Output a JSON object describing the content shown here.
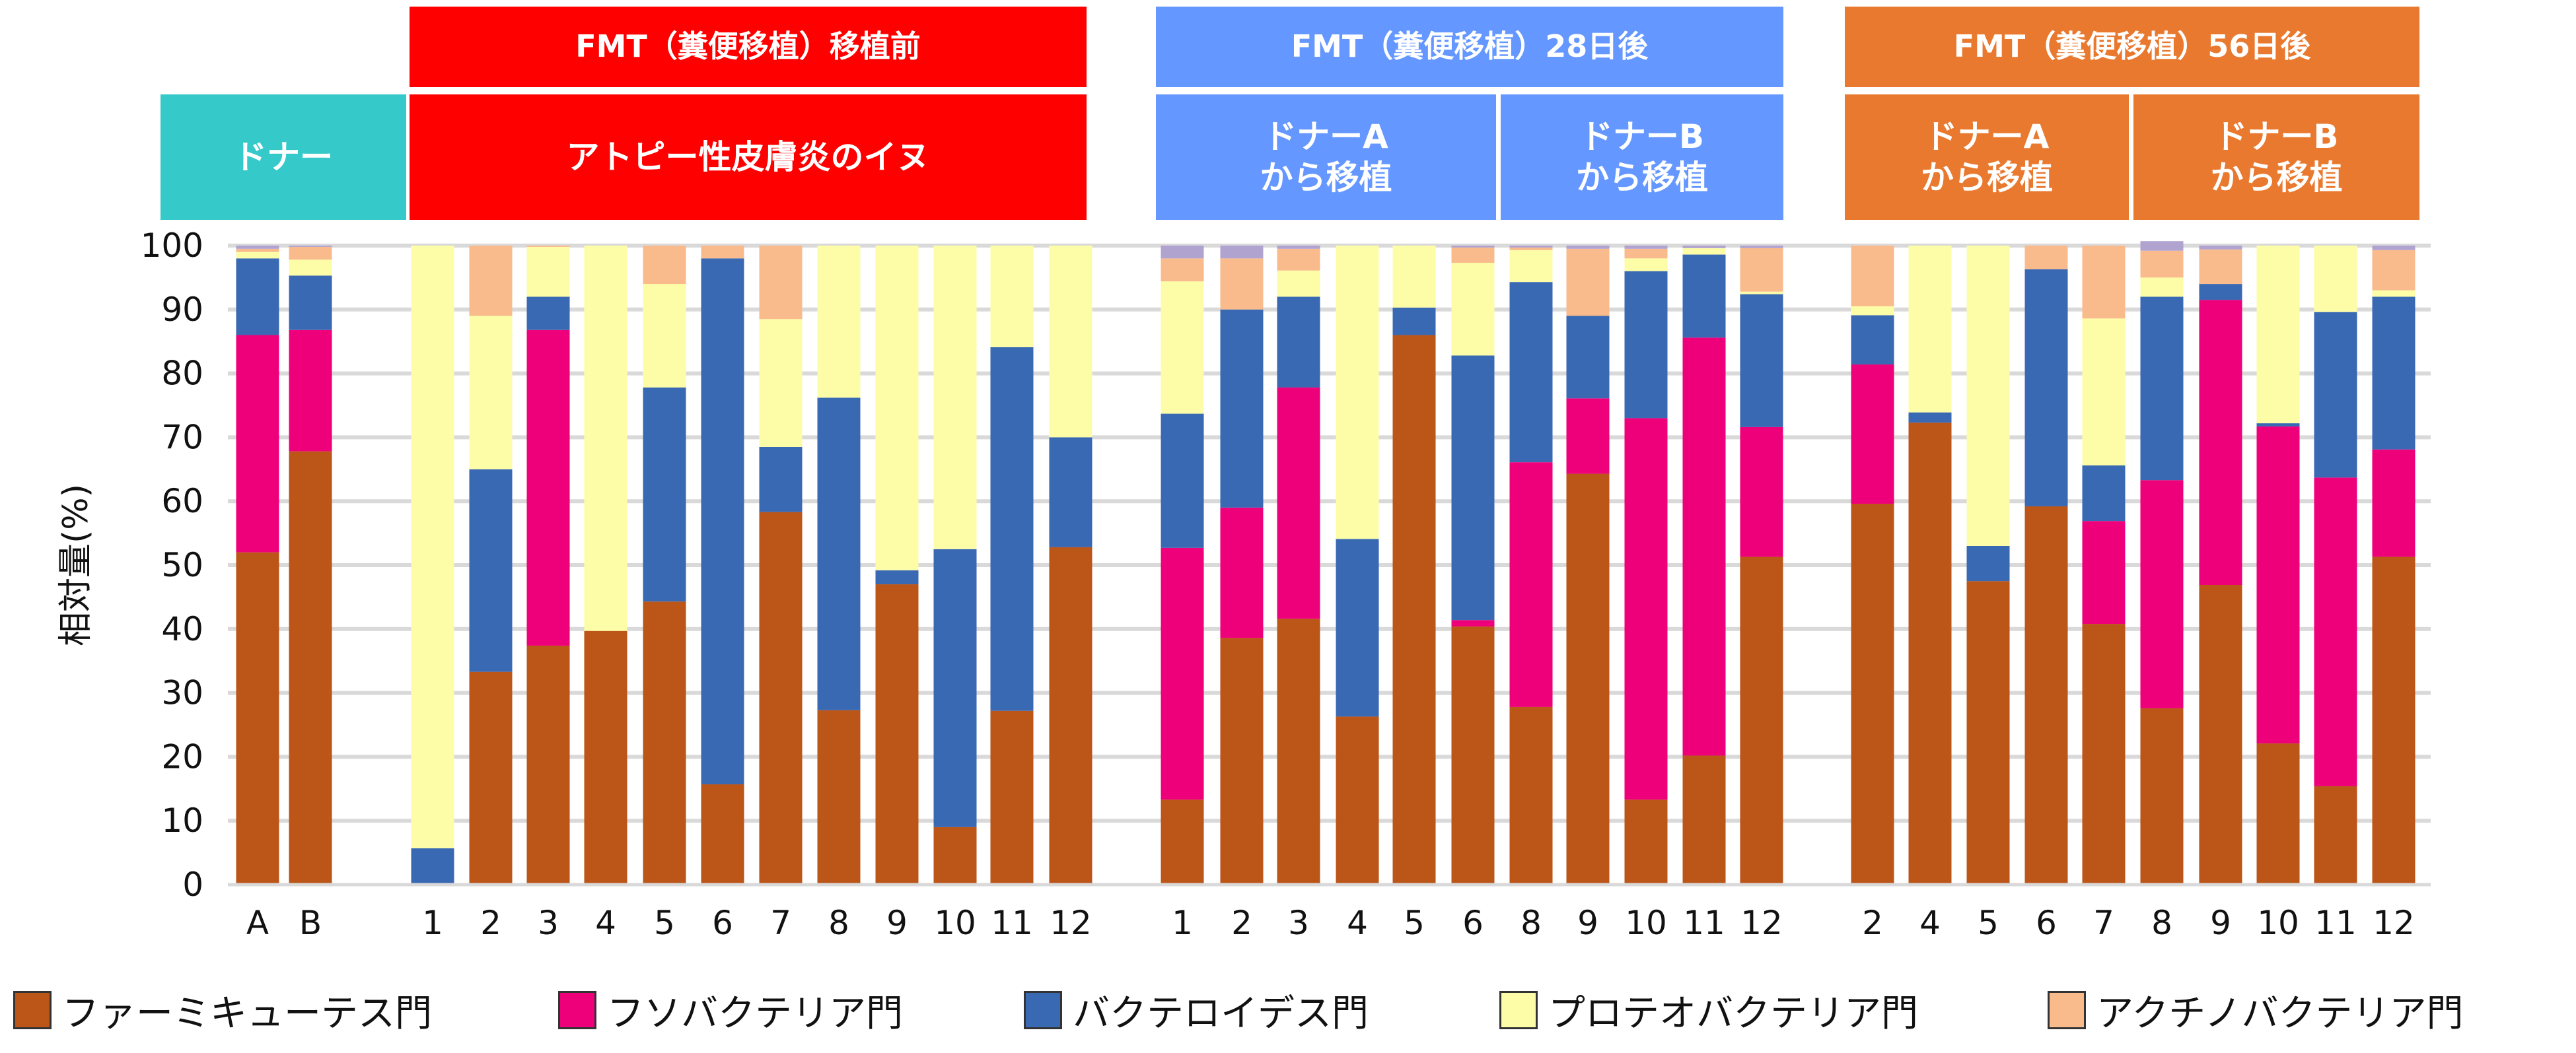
{
  "colors": {
    "firmicutes": "#bb5518",
    "fusobacteria": "#ee007a",
    "bacteroidetes": "#3a69b4",
    "proteobacteria": "#fdfda8",
    "actinobacteria": "#f9bb8c",
    "other": "#b1a3d0",
    "donor_header": "#35c9c9",
    "pre_header": "#ff0000",
    "d28_header": "#6497ff",
    "d56_header": "#e9792f"
  },
  "headers": {
    "donor": "ドナー",
    "pre_top": "FMT（糞便移植）移植前",
    "pre_bottom": "アトピー性皮膚炎のイヌ",
    "d28_top": "FMT（糞便移植）28日後",
    "d28_a": "ドナーA\nから移植",
    "d28_b": "ドナーB\nから移植",
    "d56_top": "FMT（糞便移植）56日後",
    "d56_a": "ドナーA\nから移植",
    "d56_b": "ドナーB\nから移植"
  },
  "chart_data": {
    "type": "bar",
    "stacked": true,
    "ylabel": "相対量(%)",
    "ylim": [
      0,
      100
    ],
    "yticks": [
      0,
      10,
      20,
      30,
      40,
      50,
      60,
      70,
      80,
      90,
      100
    ],
    "grid": true,
    "legend_position": "bottom",
    "series_names": [
      "ファーミキューテス門",
      "フソバクテリア門",
      "バクテロイデス門",
      "プロテオバクテリア門",
      "アクチノバクテリア門"
    ],
    "groups": [
      {
        "name": "ドナー",
        "categories": [
          "A",
          "B"
        ],
        "series": [
          {
            "name": "ファーミキューテス門",
            "values": [
              52,
              67.8
            ]
          },
          {
            "name": "フソバクテリア門",
            "values": [
              34,
              19
            ]
          },
          {
            "name": "バクテロイデス門",
            "values": [
              12,
              8.5
            ]
          },
          {
            "name": "プロテオバクテリア門",
            "values": [
              1,
              2.5
            ]
          },
          {
            "name": "アクチノバクテリア門",
            "values": [
              0.5,
              2
            ]
          },
          {
            "name": "",
            "values": [
              0.5,
              0.2
            ]
          }
        ]
      },
      {
        "name": "FMT（糞便移植）移植前",
        "categories": [
          "1",
          "2",
          "3",
          "4",
          "5",
          "6",
          "7",
          "8",
          "9",
          "10",
          "11",
          "12"
        ],
        "series": [
          {
            "name": "ファーミキューテス門",
            "values": [
              0,
              33.3,
              37.4,
              39.7,
              44.3,
              15.7,
              58.3,
              27.3,
              47,
              9,
              27.2,
              52.8
            ]
          },
          {
            "name": "フソバクテリア門",
            "values": [
              0,
              0,
              49.4,
              0,
              0,
              0,
              0,
              0,
              0,
              0,
              0,
              0
            ]
          },
          {
            "name": "バクテロイデス門",
            "values": [
              5.7,
              31.7,
              5.2,
              0,
              33.5,
              82.3,
              10.2,
              48.9,
              2.2,
              43.5,
              56.9,
              17.2
            ]
          },
          {
            "name": "プロテオバクテリア門",
            "values": [
              94.3,
              24,
              7.8,
              60.3,
              16.2,
              0,
              20,
              23.8,
              50.8,
              47.5,
              15.9,
              30
            ]
          },
          {
            "name": "アクチノバクテリア門",
            "values": [
              0,
              11,
              0.2,
              0,
              6,
              2,
              11.5,
              0,
              0,
              0,
              0,
              0
            ]
          },
          {
            "name": "",
            "values": [
              0,
              0,
              0,
              0,
              0,
              0,
              0,
              0,
              0,
              0,
              0,
              0
            ]
          }
        ]
      },
      {
        "name": "FMT（糞便移植）28日後",
        "categories": [
          "1",
          "2",
          "3",
          "4",
          "5",
          "6",
          "8",
          "9",
          "10",
          "11",
          "12"
        ],
        "series": [
          {
            "name": "ファーミキューテス門",
            "values": [
              13.3,
              38.6,
              41.6,
              26.3,
              86,
              40.4,
              27.8,
              64.3,
              13.3,
              20.2,
              51.3
            ]
          },
          {
            "name": "フソバクテリア門",
            "values": [
              39.4,
              20.4,
              36.2,
              0,
              0,
              1,
              38.3,
              11.8,
              59.7,
              65.4,
              20.3
            ]
          },
          {
            "name": "バクテロイデス門",
            "values": [
              21,
              31,
              14.2,
              27.8,
              4.3,
              41.4,
              28.2,
              12.9,
              23,
              13,
              20.8
            ]
          },
          {
            "name": "プロテオバクテリア門",
            "values": [
              20.7,
              0,
              4.1,
              45.9,
              9.7,
              14.5,
              5,
              0,
              2,
              1,
              0.4
            ]
          },
          {
            "name": "アクチノバクテリア門",
            "values": [
              3.6,
              8,
              3.4,
              0,
              0,
              2.4,
              0.4,
              10.5,
              1.5,
              0,
              6.8
            ]
          },
          {
            "name": "",
            "values": [
              2,
              2,
              0.5,
              0,
              0,
              0.3,
              0.3,
              0.5,
              0.5,
              0.4,
              0.4
            ]
          }
        ]
      },
      {
        "name": "FMT（糞便移植）56日後",
        "categories": [
          "2",
          "4",
          "5",
          "6",
          "7",
          "8",
          "9",
          "10",
          "11",
          "12"
        ],
        "series": [
          {
            "name": "ファーミキューテス門",
            "values": [
              59.6,
              72.3,
              47.5,
              59.2,
              40.8,
              27.6,
              46.9,
              22.1,
              15.4,
              51.3
            ]
          },
          {
            "name": "フソバクテリア門",
            "values": [
              21.8,
              0,
              0,
              0,
              16.1,
              35.7,
              44.6,
              49.6,
              48.3,
              16.8
            ]
          },
          {
            "name": "バクテロイデス門",
            "values": [
              7.7,
              1.6,
              5.5,
              37.1,
              8.7,
              28.7,
              2.5,
              0.5,
              25.9,
              23.9
            ]
          },
          {
            "name": "プロテオバクテリア門",
            "values": [
              1.4,
              26.1,
              47,
              0,
              23,
              3,
              0,
              27.8,
              10.4,
              1
            ]
          },
          {
            "name": "アクチノバクテリア門",
            "values": [
              9.5,
              0,
              0,
              3.7,
              11.4,
              4.2,
              5.4,
              0,
              0,
              6.3
            ]
          },
          {
            "name": "",
            "values": [
              0,
              0,
              0,
              0,
              0,
              1.5,
              0.6,
              0,
              0,
              0.7
            ]
          }
        ]
      }
    ]
  }
}
